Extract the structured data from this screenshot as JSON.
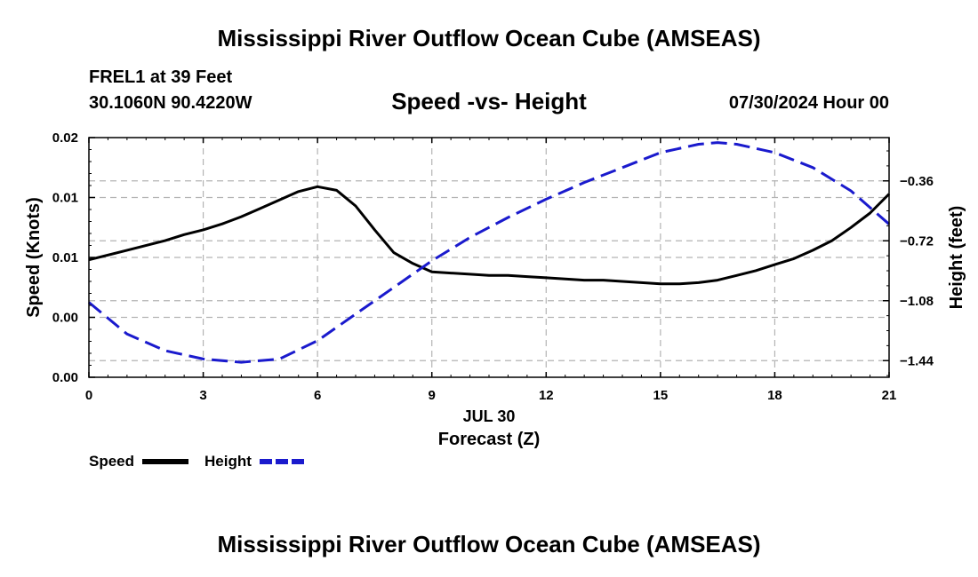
{
  "header": {
    "title": "Mississippi River Outflow Ocean Cube (AMSEAS)",
    "station": "FREL1 at 39 Feet",
    "coords": "30.1060N  90.4220W",
    "chart_title": "Speed -vs- Height",
    "datetime": "07/30/2024 Hour 00"
  },
  "footer": {
    "title": "Mississippi River Outflow Ocean Cube (AMSEAS)"
  },
  "chart_data": {
    "type": "line",
    "title": "Speed -vs- Height",
    "xlabel": "Forecast (Z)",
    "xlabel_date": "JUL 30",
    "ylabel": "Speed (Knots)",
    "y2label": "Height (feet)",
    "xlim": [
      0,
      21
    ],
    "ylim": [
      0,
      0.02
    ],
    "y2lim": [
      -1.54,
      -0.1
    ],
    "grid": true,
    "x_ticks": [
      0,
      3,
      6,
      9,
      12,
      15,
      18,
      21
    ],
    "y_ticks": [
      {
        "value": 0.0,
        "label": "0.00"
      },
      {
        "value": 0.005,
        "label": "0.00"
      },
      {
        "value": 0.01,
        "label": "0.01"
      },
      {
        "value": 0.015,
        "label": "0.01"
      },
      {
        "value": 0.02,
        "label": "0.02"
      }
    ],
    "y2_ticks": [
      {
        "value": -0.36,
        "label": "−0.36"
      },
      {
        "value": -0.72,
        "label": "−0.72"
      },
      {
        "value": -1.08,
        "label": "−1.08"
      },
      {
        "value": -1.44,
        "label": "−1.44"
      }
    ],
    "series": [
      {
        "name": "Speed",
        "axis": "left",
        "color": "#000000",
        "dash": "solid",
        "x": [
          0,
          1,
          2,
          2.5,
          3,
          3.5,
          4,
          4.5,
          5,
          5.5,
          6,
          6.5,
          7,
          7.5,
          8,
          8.5,
          9,
          9.5,
          10,
          10.5,
          11,
          11.5,
          12,
          12.5,
          13,
          13.5,
          14,
          14.5,
          15,
          15.5,
          16,
          16.5,
          17,
          17.5,
          18,
          18.5,
          19,
          19.5,
          20,
          20.5,
          21
        ],
        "values": [
          0.0098,
          0.0106,
          0.0114,
          0.0119,
          0.0123,
          0.0128,
          0.0134,
          0.0141,
          0.0148,
          0.0155,
          0.0159,
          0.0156,
          0.0143,
          0.0123,
          0.0104,
          0.0095,
          0.0088,
          0.0087,
          0.0086,
          0.0085,
          0.0085,
          0.0084,
          0.0083,
          0.0082,
          0.0081,
          0.0081,
          0.008,
          0.0079,
          0.0078,
          0.0078,
          0.0079,
          0.0081,
          0.0085,
          0.0089,
          0.0094,
          0.0099,
          0.0106,
          0.0114,
          0.0125,
          0.0137,
          0.0153
        ]
      },
      {
        "name": "Height",
        "axis": "right",
        "color": "#1a1acd",
        "dash": "dashed",
        "x": [
          0,
          1,
          2,
          3,
          4,
          5,
          6,
          7,
          8,
          9,
          10,
          11,
          12,
          13,
          14,
          15,
          16,
          16.5,
          17,
          18,
          19,
          20,
          21
        ],
        "values": [
          -1.09,
          -1.28,
          -1.38,
          -1.43,
          -1.45,
          -1.43,
          -1.32,
          -1.16,
          -1.0,
          -0.84,
          -0.7,
          -0.58,
          -0.47,
          -0.37,
          -0.28,
          -0.19,
          -0.14,
          -0.13,
          -0.14,
          -0.19,
          -0.28,
          -0.42,
          -0.62
        ]
      }
    ],
    "legend": [
      {
        "label": "Speed",
        "color": "#000000",
        "dash": "solid"
      },
      {
        "label": "Height",
        "color": "#1a1acd",
        "dash": "dashed"
      }
    ]
  }
}
